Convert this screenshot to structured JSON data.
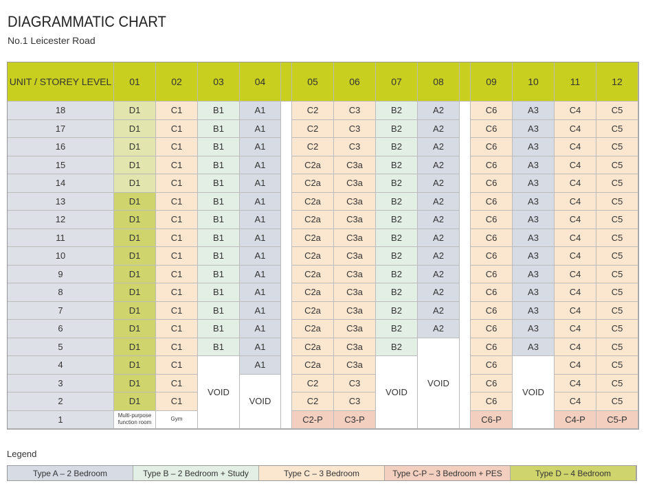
{
  "title": "DIAGRAMMATIC CHART",
  "subtitle": "No.1 Leicester Road",
  "colors": {
    "header": "#c9cf1e",
    "level": "#dde0e6",
    "A": "#d6dbe4",
    "B": "#e3efe5",
    "C": "#fbe6cf",
    "CP": "#f2cfbf",
    "D": "#cfd46d"
  },
  "table": {
    "header_label": "UNIT / STOREY LEVEL",
    "units": [
      "01",
      "02",
      "03",
      "04",
      "05",
      "06",
      "07",
      "08",
      "09",
      "10",
      "11",
      "12"
    ],
    "rows": [
      {
        "level": "18",
        "cells": [
          "D1",
          "C1",
          "B1",
          "A1",
          "C2",
          "C3",
          "B2",
          "A2",
          "C6",
          "A3",
          "C4",
          "C5"
        ]
      },
      {
        "level": "17",
        "cells": [
          "D1",
          "C1",
          "B1",
          "A1",
          "C2",
          "C3",
          "B2",
          "A2",
          "C6",
          "A3",
          "C4",
          "C5"
        ]
      },
      {
        "level": "16",
        "cells": [
          "D1",
          "C1",
          "B1",
          "A1",
          "C2",
          "C3",
          "B2",
          "A2",
          "C6",
          "A3",
          "C4",
          "C5"
        ]
      },
      {
        "level": "15",
        "cells": [
          "D1",
          "C1",
          "B1",
          "A1",
          "C2a",
          "C3a",
          "B2",
          "A2",
          "C6",
          "A3",
          "C4",
          "C5"
        ]
      },
      {
        "level": "14",
        "cells": [
          "D1",
          "C1",
          "B1",
          "A1",
          "C2a",
          "C3a",
          "B2",
          "A2",
          "C6",
          "A3",
          "C4",
          "C5"
        ]
      },
      {
        "level": "13",
        "cells": [
          "D1",
          "C1",
          "B1",
          "A1",
          "C2a",
          "C3a",
          "B2",
          "A2",
          "C6",
          "A3",
          "C4",
          "C5"
        ]
      },
      {
        "level": "12",
        "cells": [
          "D1",
          "C1",
          "B1",
          "A1",
          "C2a",
          "C3a",
          "B2",
          "A2",
          "C6",
          "A3",
          "C4",
          "C5"
        ]
      },
      {
        "level": "11",
        "cells": [
          "D1",
          "C1",
          "B1",
          "A1",
          "C2a",
          "C3a",
          "B2",
          "A2",
          "C6",
          "A3",
          "C4",
          "C5"
        ]
      },
      {
        "level": "10",
        "cells": [
          "D1",
          "C1",
          "B1",
          "A1",
          "C2a",
          "C3a",
          "B2",
          "A2",
          "C6",
          "A3",
          "C4",
          "C5"
        ]
      },
      {
        "level": "9",
        "cells": [
          "D1",
          "C1",
          "B1",
          "A1",
          "C2a",
          "C3a",
          "B2",
          "A2",
          "C6",
          "A3",
          "C4",
          "C5"
        ]
      },
      {
        "level": "8",
        "cells": [
          "D1",
          "C1",
          "B1",
          "A1",
          "C2a",
          "C3a",
          "B2",
          "A2",
          "C6",
          "A3",
          "C4",
          "C5"
        ]
      },
      {
        "level": "7",
        "cells": [
          "D1",
          "C1",
          "B1",
          "A1",
          "C2a",
          "C3a",
          "B2",
          "A2",
          "C6",
          "A3",
          "C4",
          "C5"
        ]
      },
      {
        "level": "6",
        "cells": [
          "D1",
          "C1",
          "B1",
          "A1",
          "C2a",
          "C3a",
          "B2",
          "A2",
          "C6",
          "A3",
          "C4",
          "C5"
        ]
      },
      {
        "level": "5",
        "cells": [
          "D1",
          "C1",
          "B1",
          "A1",
          "C2a",
          "C3a",
          "B2",
          null,
          "C6",
          "A3",
          "C4",
          "C5"
        ]
      },
      {
        "level": "4",
        "cells": [
          "D1",
          "C1",
          null,
          "A1",
          "C2a",
          "C3a",
          null,
          null,
          "C6",
          null,
          "C4",
          "C5"
        ]
      },
      {
        "level": "3",
        "cells": [
          "D1",
          "C1",
          null,
          null,
          "C2",
          "C3",
          null,
          null,
          "C6",
          null,
          "C4",
          "C5"
        ]
      },
      {
        "level": "2",
        "cells": [
          "D1",
          "C1",
          null,
          null,
          "C2",
          "C3",
          null,
          null,
          "C6",
          null,
          "C4",
          "C5"
        ]
      },
      {
        "level": "1",
        "cells": [
          "Multi-purpose function room",
          "Gym",
          null,
          null,
          "C2-P",
          "C3-P",
          null,
          null,
          "C6-P",
          null,
          "C4-P",
          "C5-P"
        ]
      }
    ],
    "voids": [
      {
        "unit": "03",
        "label": "VOID",
        "from_level": "4",
        "to_level": "1"
      },
      {
        "unit": "04",
        "label": "VOID",
        "from_level": "3",
        "to_level": "1"
      },
      {
        "unit": "07",
        "label": "VOID",
        "from_level": "4",
        "to_level": "1"
      },
      {
        "unit": "08",
        "label": "VOID",
        "from_level": "5",
        "to_level": "1"
      },
      {
        "unit": "10",
        "label": "VOID",
        "from_level": "4",
        "to_level": "1"
      }
    ]
  },
  "legend": {
    "title": "Legend",
    "items": [
      {
        "type": "A",
        "label": "Type A  –  2 Bedroom"
      },
      {
        "type": "B",
        "label": "Type B  –  2 Bedroom + Study"
      },
      {
        "type": "C",
        "label": "Type C  –  3 Bedroom"
      },
      {
        "type": "CP",
        "label": "Type C-P  –  3 Bedroom + PES"
      },
      {
        "type": "D",
        "label": "Type D  –  4 Bedroom"
      }
    ]
  }
}
